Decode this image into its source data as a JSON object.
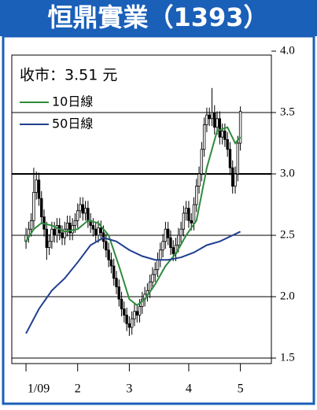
{
  "chart_data": {
    "type": "candlestick",
    "title": "恒鼎實業（1393）",
    "annotation": "收市：3.51 元",
    "color": "#000000",
    "x": [
      0,
      1,
      2,
      3,
      4,
      5,
      6,
      7,
      8,
      9,
      10,
      11,
      12,
      13,
      14,
      15,
      16,
      17,
      18,
      19,
      20,
      21,
      22,
      23,
      24,
      25,
      26,
      27,
      28,
      29,
      30,
      31,
      32,
      33,
      34,
      35,
      36,
      37,
      38,
      39,
      40,
      41,
      42,
      43,
      44,
      45,
      46,
      47,
      48,
      49,
      50,
      51,
      52,
      53,
      54,
      55,
      56,
      57,
      58,
      59,
      60,
      61,
      62,
      63,
      64,
      65,
      66,
      67,
      68,
      69,
      70,
      71,
      72,
      73,
      74,
      75,
      76,
      77,
      78,
      79,
      80,
      81,
      82,
      83
    ],
    "open": [
      2.45,
      2.5,
      2.55,
      2.62,
      2.85,
      2.95,
      2.8,
      2.65,
      2.55,
      2.4,
      2.45,
      2.55,
      2.5,
      2.58,
      2.52,
      2.48,
      2.55,
      2.6,
      2.52,
      2.58,
      2.62,
      2.7,
      2.75,
      2.68,
      2.72,
      2.62,
      2.58,
      2.55,
      2.5,
      2.56,
      2.52,
      2.45,
      2.38,
      2.3,
      2.25,
      2.15,
      2.08,
      1.98,
      1.9,
      1.85,
      1.78,
      1.75,
      1.82,
      1.88,
      1.85,
      1.92,
      1.98,
      2.02,
      2.05,
      2.12,
      2.18,
      2.22,
      2.3,
      2.38,
      2.45,
      2.55,
      2.48,
      2.4,
      2.35,
      2.42,
      2.5,
      2.55,
      2.68,
      2.72,
      2.62,
      2.6,
      2.75,
      2.9,
      3.0,
      3.2,
      3.4,
      3.48,
      3.45,
      3.5,
      3.38,
      3.45,
      3.3,
      3.35,
      3.28,
      3.2,
      3.05,
      2.9,
      3.0,
      3.25
    ],
    "high": [
      2.56,
      2.61,
      2.68,
      3.05,
      3.02,
      3.01,
      2.86,
      2.71,
      2.61,
      2.51,
      2.61,
      2.61,
      2.64,
      2.64,
      2.58,
      2.61,
      2.66,
      2.66,
      2.64,
      2.68,
      2.76,
      2.81,
      2.81,
      2.78,
      2.78,
      2.68,
      2.64,
      2.61,
      2.62,
      2.62,
      2.58,
      2.51,
      2.44,
      2.36,
      2.31,
      2.21,
      2.14,
      2.04,
      1.96,
      1.91,
      1.84,
      1.88,
      1.94,
      1.94,
      1.98,
      2.04,
      2.08,
      2.11,
      2.18,
      2.24,
      2.28,
      2.36,
      2.44,
      2.51,
      2.61,
      2.61,
      2.54,
      2.46,
      2.48,
      2.56,
      2.61,
      2.74,
      2.78,
      2.78,
      2.68,
      2.81,
      2.96,
      3.06,
      3.26,
      3.46,
      3.54,
      3.54,
      3.7,
      3.56,
      3.51,
      3.51,
      3.41,
      3.41,
      3.34,
      3.26,
      3.11,
      3.06,
      3.31,
      3.55
    ],
    "low": [
      2.39,
      2.44,
      2.49,
      2.56,
      2.79,
      2.74,
      2.59,
      2.49,
      2.3,
      2.34,
      2.39,
      2.44,
      2.44,
      2.46,
      2.42,
      2.42,
      2.49,
      2.46,
      2.46,
      2.52,
      2.56,
      2.64,
      2.62,
      2.62,
      2.56,
      2.52,
      2.49,
      2.44,
      2.44,
      2.46,
      2.39,
      2.32,
      2.24,
      2.19,
      2.09,
      2.02,
      1.92,
      1.84,
      1.79,
      1.72,
      1.68,
      1.69,
      1.76,
      1.79,
      1.79,
      1.86,
      1.92,
      1.96,
      1.99,
      2.06,
      2.12,
      2.16,
      2.24,
      2.32,
      2.39,
      2.42,
      2.34,
      2.29,
      2.29,
      2.36,
      2.44,
      2.49,
      2.62,
      2.56,
      2.54,
      2.54,
      2.69,
      2.84,
      2.94,
      3.14,
      3.34,
      3.39,
      3.39,
      3.32,
      3.32,
      3.24,
      3.24,
      3.22,
      3.14,
      2.99,
      2.84,
      2.84,
      2.94,
      3.19
    ],
    "close": [
      2.5,
      2.55,
      2.62,
      2.85,
      2.95,
      2.8,
      2.65,
      2.55,
      2.4,
      2.45,
      2.55,
      2.5,
      2.58,
      2.52,
      2.48,
      2.55,
      2.6,
      2.52,
      2.58,
      2.62,
      2.7,
      2.75,
      2.68,
      2.72,
      2.62,
      2.58,
      2.55,
      2.5,
      2.56,
      2.52,
      2.45,
      2.38,
      2.3,
      2.25,
      2.15,
      2.08,
      1.98,
      1.9,
      1.85,
      1.78,
      1.75,
      1.82,
      1.88,
      1.85,
      1.92,
      1.98,
      2.02,
      2.05,
      2.12,
      2.18,
      2.22,
      2.3,
      2.38,
      2.45,
      2.55,
      2.48,
      2.4,
      2.35,
      2.42,
      2.5,
      2.55,
      2.68,
      2.72,
      2.62,
      2.6,
      2.75,
      2.9,
      3.0,
      3.2,
      3.4,
      3.48,
      3.45,
      3.5,
      3.38,
      3.45,
      3.3,
      3.35,
      3.28,
      3.2,
      3.05,
      2.9,
      3.0,
      3.25,
      3.51
    ],
    "series": [
      {
        "name": "10日線",
        "color": "#2e8b3a",
        "x": [
          0,
          3,
          6,
          10,
          15,
          20,
          24,
          28,
          32,
          36,
          40,
          43,
          46,
          50,
          54,
          58,
          62,
          66,
          70,
          74,
          78,
          81,
          83
        ],
        "values": [
          2.45,
          2.55,
          2.6,
          2.58,
          2.53,
          2.55,
          2.62,
          2.6,
          2.5,
          2.25,
          1.98,
          1.93,
          1.98,
          2.1,
          2.25,
          2.35,
          2.5,
          2.62,
          3.05,
          3.35,
          3.38,
          3.25,
          3.3
        ]
      },
      {
        "name": "50日線",
        "color": "#1f3f8f",
        "x": [
          0,
          5,
          10,
          15,
          20,
          25,
          30,
          35,
          40,
          45,
          50,
          55,
          60,
          65,
          70,
          75,
          80,
          83
        ],
        "values": [
          1.7,
          1.9,
          2.05,
          2.15,
          2.28,
          2.42,
          2.48,
          2.45,
          2.38,
          2.33,
          2.3,
          2.3,
          2.32,
          2.36,
          2.42,
          2.45,
          2.5,
          2.53
        ]
      }
    ],
    "xlim": [
      -5.5,
      95
    ],
    "xticks": [
      {
        "value": 0,
        "label": "1/09"
      },
      {
        "value": 20,
        "label": "2"
      },
      {
        "value": 40,
        "label": "3"
      },
      {
        "value": 63,
        "label": "4"
      },
      {
        "value": 83,
        "label": "5"
      }
    ],
    "ylim": [
      1.5,
      4.0
    ],
    "yticks": [
      {
        "value": 4,
        "label": "4.0"
      },
      3.5,
      {
        "value": 3,
        "label": "3.0"
      },
      2.5,
      {
        "value": 2,
        "label": "2.0"
      },
      1.5
    ],
    "grid": true
  }
}
